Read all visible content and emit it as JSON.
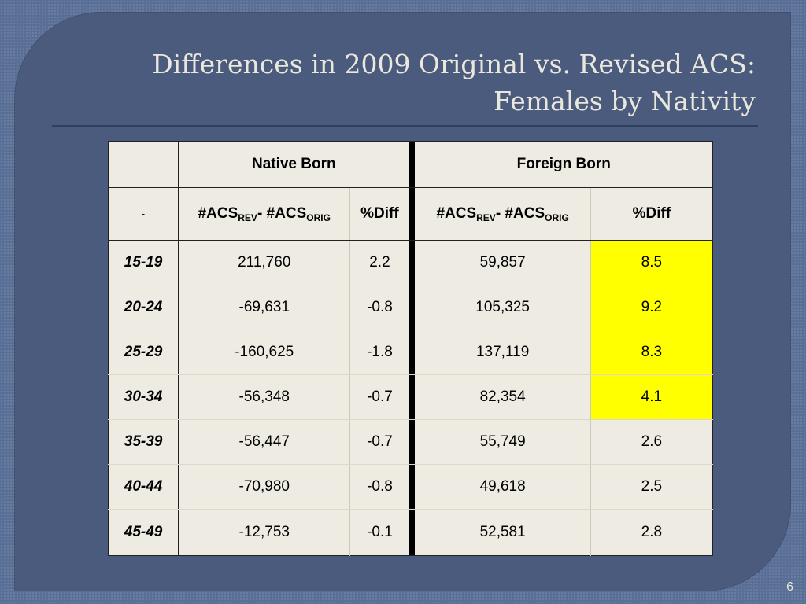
{
  "slide": {
    "title_line1": "Differences in 2009 Original vs. Revised ACS:",
    "title_line2": "Females by Nativity",
    "page_number": "6"
  },
  "table": {
    "group_headers": {
      "native": "Native Born",
      "foreign": "Foreign Born"
    },
    "sub_headers": {
      "corner_mark": "-",
      "acs_prefix": "#ACS",
      "rev_sub": "REV",
      "mid": "- #ACS",
      "orig_sub": "ORIG",
      "pct_diff": "%Diff"
    },
    "rows": [
      {
        "age": "15-19",
        "native_diff": "211,760",
        "native_pct": "2.2",
        "foreign_diff": "59,857",
        "foreign_pct": "8.5"
      },
      {
        "age": "20-24",
        "native_diff": "-69,631",
        "native_pct": "-0.8",
        "foreign_diff": "105,325",
        "foreign_pct": "9.2"
      },
      {
        "age": "25-29",
        "native_diff": "-160,625",
        "native_pct": "-1.8",
        "foreign_diff": "137,119",
        "foreign_pct": "8.3"
      },
      {
        "age": "30-34",
        "native_diff": "-56,348",
        "native_pct": "-0.7",
        "foreign_diff": "82,354",
        "foreign_pct": "4.1"
      },
      {
        "age": "35-39",
        "native_diff": "-56,447",
        "native_pct": "-0.7",
        "foreign_diff": "55,749",
        "foreign_pct": "2.6"
      },
      {
        "age": "40-44",
        "native_diff": "-70,980",
        "native_pct": "-0.8",
        "foreign_diff": "49,618",
        "foreign_pct": "2.5"
      },
      {
        "age": "45-49",
        "native_diff": "-12,753",
        "native_pct": "-0.1",
        "foreign_diff": "52,581",
        "foreign_pct": "2.8"
      }
    ],
    "highlight_color": "#ffff00",
    "highlighted_cells": [
      "15-19 foreign_pct",
      "20-24 foreign_pct",
      "25-29 foreign_pct",
      "30-34 foreign_pct"
    ]
  }
}
